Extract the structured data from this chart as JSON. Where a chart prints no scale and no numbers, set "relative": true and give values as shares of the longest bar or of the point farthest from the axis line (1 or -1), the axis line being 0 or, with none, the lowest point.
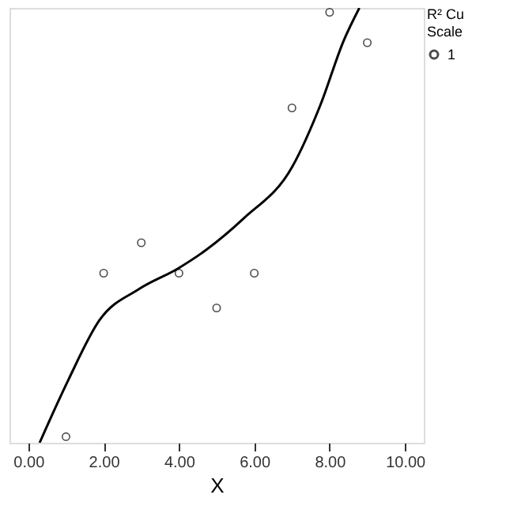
{
  "chart_data": {
    "type": "scatter",
    "relative": true,
    "xlabel": "X",
    "legend_title": "R² Cu\nScale",
    "legend": "right",
    "grid": false,
    "xlim": [
      -0.5,
      10.5
    ],
    "xticks": [
      {
        "value": 0,
        "label": "0.00"
      },
      {
        "value": 2,
        "label": "2.00"
      },
      {
        "value": 4,
        "label": "4.00"
      },
      {
        "value": 6,
        "label": "6.00"
      },
      {
        "value": 8,
        "label": "8.00"
      },
      {
        "value": 10,
        "label": "10.00"
      }
    ],
    "series": [
      {
        "name": "1",
        "marker": "circle",
        "color": "#000000",
        "x": [
          1,
          2,
          3,
          4,
          5,
          6,
          7,
          8,
          9
        ],
        "values": [
          0.014,
          0.39,
          0.46,
          0.39,
          0.31,
          0.39,
          0.77,
          0.99,
          0.92
        ]
      },
      {
        "type": "line",
        "line_style": "solid",
        "color": "#000000",
        "x": [
          0.3,
          1.06,
          1.89,
          2.95,
          3.98,
          4.73,
          5.72,
          7.01,
          7.77,
          8.37,
          8.79
        ],
        "values": [
          0,
          0.144,
          0.282,
          0.354,
          0.401,
          0.444,
          0.516,
          0.635,
          0.78,
          0.924,
          1.0
        ]
      }
    ]
  }
}
